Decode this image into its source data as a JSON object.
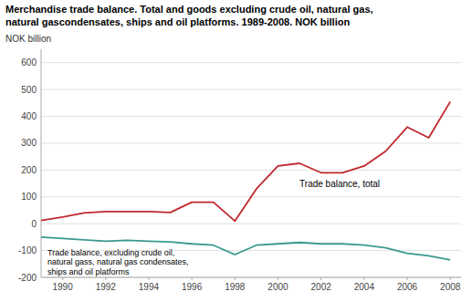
{
  "chart_data": {
    "type": "line",
    "title": [
      "Merchandise trade balance. Total and goods excluding crude oil, natural gas,",
      "natural gascondensates, ships and oil platforms. 1989-2008. NOK billion"
    ],
    "y_label": "NOK billion",
    "x": [
      1989,
      1990,
      1991,
      1992,
      1993,
      1994,
      1995,
      1996,
      1997,
      1998,
      1999,
      2000,
      2001,
      2002,
      2003,
      2004,
      2005,
      2006,
      2007,
      2008
    ],
    "series": [
      {
        "color": "#c0272d",
        "values": [
          12,
          25,
          40,
          45,
          45,
          45,
          42,
          80,
          80,
          10,
          130,
          215,
          225,
          190,
          190,
          215,
          270,
          360,
          320,
          455
        ]
      },
      {
        "color": "#3a9a8f",
        "values": [
          -50,
          -55,
          -60,
          -65,
          -62,
          -65,
          -68,
          -75,
          -80,
          -115,
          -80,
          -75,
          -70,
          -75,
          -75,
          -80,
          -90,
          -110,
          -120,
          -135
        ]
      }
    ],
    "annotations": [
      [
        "Trade balance, total"
      ],
      [
        "Trade balance, excluding crude oil,",
        "natural gass, natural gas condensates,",
        "ships and oil platforms"
      ]
    ],
    "xlim": [
      1989,
      2008.5
    ],
    "xticks": [
      1990,
      1992,
      1994,
      1996,
      1998,
      2000,
      2002,
      2004,
      2006,
      2008
    ],
    "ylim": [
      -200,
      650
    ],
    "yticks": [
      -200,
      -100,
      0,
      100,
      200,
      300,
      400,
      500,
      600
    ],
    "grid": true
  }
}
